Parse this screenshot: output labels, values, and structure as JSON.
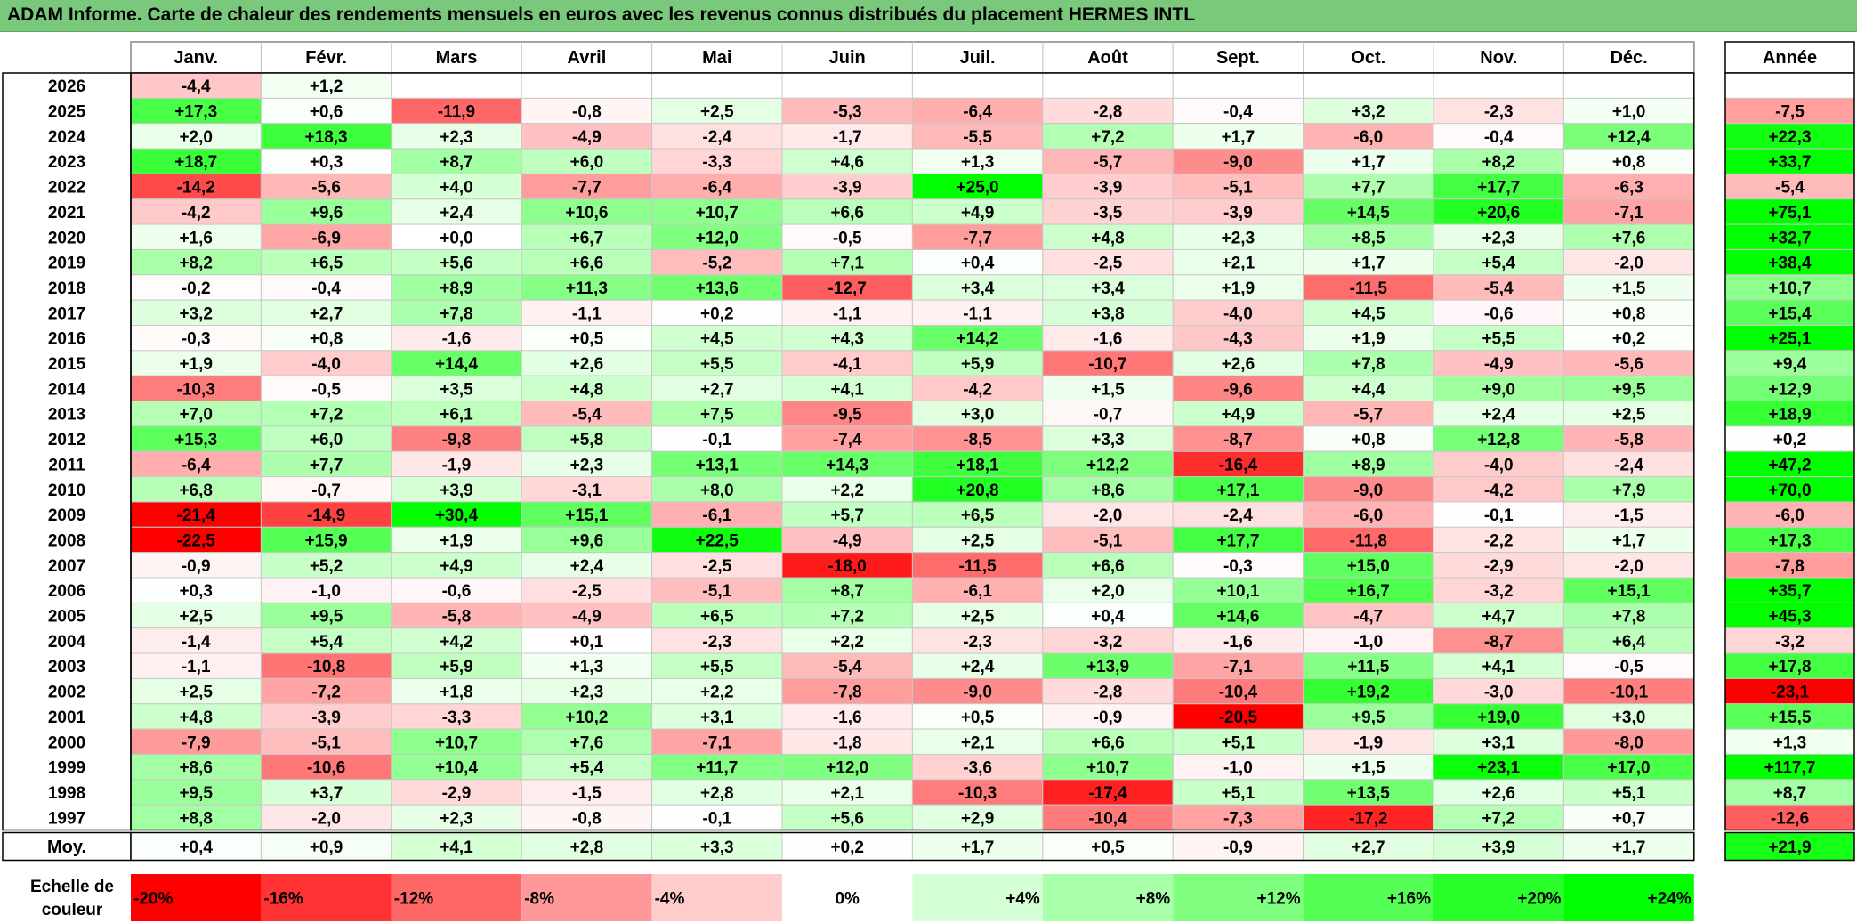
{
  "title": "ADAM Informe. Carte de chaleur des rendements mensuels en euros avec les revenus connus distribués du placement HERMES INTL",
  "chart_data": {
    "type": "heatmap",
    "title": "ADAM Informe. Carte de chaleur des rendements mensuels en euros avec les revenus connus distribués du placement HERMES INTL",
    "columns": [
      "Janv.",
      "Févr.",
      "Mars",
      "Avril",
      "Mai",
      "Juin",
      "Juil.",
      "Août",
      "Sept.",
      "Oct.",
      "Nov.",
      "Déc."
    ],
    "year_column_label": "Année",
    "rows": [
      {
        "label": "2026",
        "values": [
          "-4,4",
          "+1,2",
          "",
          "",
          "",
          "",
          "",
          "",
          "",
          "",
          "",
          ""
        ],
        "year": ""
      },
      {
        "label": "2025",
        "values": [
          "+17,3",
          "+0,6",
          "-11,9",
          "-0,8",
          "+2,5",
          "-5,3",
          "-6,4",
          "-2,8",
          "-0,4",
          "+3,2",
          "-2,3",
          "+1,0"
        ],
        "year": "-7,5"
      },
      {
        "label": "2024",
        "values": [
          "+2,0",
          "+18,3",
          "+2,3",
          "-4,9",
          "-2,4",
          "-1,7",
          "-5,5",
          "+7,2",
          "+1,7",
          "-6,0",
          "-0,4",
          "+12,4"
        ],
        "year": "+22,3"
      },
      {
        "label": "2023",
        "values": [
          "+18,7",
          "+0,3",
          "+8,7",
          "+6,0",
          "-3,3",
          "+4,6",
          "+1,3",
          "-5,7",
          "-9,0",
          "+1,7",
          "+8,2",
          "+0,8"
        ],
        "year": "+33,7"
      },
      {
        "label": "2022",
        "values": [
          "-14,2",
          "-5,6",
          "+4,0",
          "-7,7",
          "-6,4",
          "-3,9",
          "+25,0",
          "-3,9",
          "-5,1",
          "+7,7",
          "+17,7",
          "-6,3"
        ],
        "year": "-5,4"
      },
      {
        "label": "2021",
        "values": [
          "-4,2",
          "+9,6",
          "+2,4",
          "+10,6",
          "+10,7",
          "+6,6",
          "+4,9",
          "-3,5",
          "-3,9",
          "+14,5",
          "+20,6",
          "-7,1"
        ],
        "year": "+75,1"
      },
      {
        "label": "2020",
        "values": [
          "+1,6",
          "-6,9",
          "+0,0",
          "+6,7",
          "+12,0",
          "-0,5",
          "-7,7",
          "+4,8",
          "+2,3",
          "+8,5",
          "+2,3",
          "+7,6"
        ],
        "year": "+32,7"
      },
      {
        "label": "2019",
        "values": [
          "+8,2",
          "+6,5",
          "+5,6",
          "+6,6",
          "-5,2",
          "+7,1",
          "+0,4",
          "-2,5",
          "+2,1",
          "+1,7",
          "+5,4",
          "-2,0"
        ],
        "year": "+38,4"
      },
      {
        "label": "2018",
        "values": [
          "-0,2",
          "-0,4",
          "+8,9",
          "+11,3",
          "+13,6",
          "-12,7",
          "+3,4",
          "+3,4",
          "+1,9",
          "-11,5",
          "-5,4",
          "+1,5"
        ],
        "year": "+10,7"
      },
      {
        "label": "2017",
        "values": [
          "+3,2",
          "+2,7",
          "+7,8",
          "-1,1",
          "+0,2",
          "-1,1",
          "-1,1",
          "+3,8",
          "-4,0",
          "+4,5",
          "-0,6",
          "+0,8"
        ],
        "year": "+15,4"
      },
      {
        "label": "2016",
        "values": [
          "-0,3",
          "+0,8",
          "-1,6",
          "+0,5",
          "+4,5",
          "+4,3",
          "+14,2",
          "-1,6",
          "-4,3",
          "+1,9",
          "+5,5",
          "+0,2"
        ],
        "year": "+25,1"
      },
      {
        "label": "2015",
        "values": [
          "+1,9",
          "-4,0",
          "+14,4",
          "+2,6",
          "+5,5",
          "-4,1",
          "+5,9",
          "-10,7",
          "+2,6",
          "+7,8",
          "-4,9",
          "-5,6"
        ],
        "year": "+9,4"
      },
      {
        "label": "2014",
        "values": [
          "-10,3",
          "-0,5",
          "+3,5",
          "+4,8",
          "+2,7",
          "+4,1",
          "-4,2",
          "+1,5",
          "-9,6",
          "+4,4",
          "+9,0",
          "+9,5"
        ],
        "year": "+12,9"
      },
      {
        "label": "2013",
        "values": [
          "+7,0",
          "+7,2",
          "+6,1",
          "-5,4",
          "+7,5",
          "-9,5",
          "+3,0",
          "-0,7",
          "+4,9",
          "-5,7",
          "+2,4",
          "+2,5"
        ],
        "year": "+18,9"
      },
      {
        "label": "2012",
        "values": [
          "+15,3",
          "+6,0",
          "-9,8",
          "+5,8",
          "-0,1",
          "-7,4",
          "-8,5",
          "+3,3",
          "-8,7",
          "+0,8",
          "+12,8",
          "-5,8"
        ],
        "year": "+0,2"
      },
      {
        "label": "2011",
        "values": [
          "-6,4",
          "+7,7",
          "-1,9",
          "+2,3",
          "+13,1",
          "+14,3",
          "+18,1",
          "+12,2",
          "-16,4",
          "+8,9",
          "-4,0",
          "-2,4"
        ],
        "year": "+47,2"
      },
      {
        "label": "2010",
        "values": [
          "+6,8",
          "-0,7",
          "+3,9",
          "-3,1",
          "+8,0",
          "+2,2",
          "+20,8",
          "+8,6",
          "+17,1",
          "-9,0",
          "-4,2",
          "+7,9"
        ],
        "year": "+70,0"
      },
      {
        "label": "2009",
        "values": [
          "-21,4",
          "-14,9",
          "+30,4",
          "+15,1",
          "-6,1",
          "+5,7",
          "+6,5",
          "-2,0",
          "-2,4",
          "-6,0",
          "-0,1",
          "-1,5"
        ],
        "year": "-6,0"
      },
      {
        "label": "2008",
        "values": [
          "-22,5",
          "+15,9",
          "+1,9",
          "+9,6",
          "+22,5",
          "-4,9",
          "+2,5",
          "-5,1",
          "+17,7",
          "-11,8",
          "-2,2",
          "+1,7"
        ],
        "year": "+17,3"
      },
      {
        "label": "2007",
        "values": [
          "-0,9",
          "+5,2",
          "+4,9",
          "+2,4",
          "-2,5",
          "-18,0",
          "-11,5",
          "+6,6",
          "-0,3",
          "+15,0",
          "-2,9",
          "-2,0"
        ],
        "year": "-7,8"
      },
      {
        "label": "2006",
        "values": [
          "+0,3",
          "-1,0",
          "-0,6",
          "-2,5",
          "-5,1",
          "+8,7",
          "-6,1",
          "+2,0",
          "+10,1",
          "+16,7",
          "-3,2",
          "+15,1"
        ],
        "year": "+35,7"
      },
      {
        "label": "2005",
        "values": [
          "+2,5",
          "+9,5",
          "-5,8",
          "-4,9",
          "+6,5",
          "+7,2",
          "+2,5",
          "+0,4",
          "+14,6",
          "-4,7",
          "+4,7",
          "+7,8"
        ],
        "year": "+45,3"
      },
      {
        "label": "2004",
        "values": [
          "-1,4",
          "+5,4",
          "+4,2",
          "+0,1",
          "-2,3",
          "+2,2",
          "-2,3",
          "-3,2",
          "-1,6",
          "-1,0",
          "-8,7",
          "+6,4"
        ],
        "year": "-3,2"
      },
      {
        "label": "2003",
        "values": [
          "-1,1",
          "-10,8",
          "+5,9",
          "+1,3",
          "+5,5",
          "-5,4",
          "+2,4",
          "+13,9",
          "-7,1",
          "+11,5",
          "+4,1",
          "-0,5"
        ],
        "year": "+17,8"
      },
      {
        "label": "2002",
        "values": [
          "+2,5",
          "-7,2",
          "+1,8",
          "+2,3",
          "+2,2",
          "-7,8",
          "-9,0",
          "-2,8",
          "-10,4",
          "+19,2",
          "-3,0",
          "-10,1"
        ],
        "year": "-23,1"
      },
      {
        "label": "2001",
        "values": [
          "+4,8",
          "-3,9",
          "-3,3",
          "+10,2",
          "+3,1",
          "-1,6",
          "+0,5",
          "-0,9",
          "-20,5",
          "+9,5",
          "+19,0",
          "+3,0"
        ],
        "year": "+15,5"
      },
      {
        "label": "2000",
        "values": [
          "-7,9",
          "-5,1",
          "+10,7",
          "+7,6",
          "-7,1",
          "-1,8",
          "+2,1",
          "+6,6",
          "+5,1",
          "-1,9",
          "+3,1",
          "-8,0"
        ],
        "year": "+1,3"
      },
      {
        "label": "1999",
        "values": [
          "+8,6",
          "-10,6",
          "+10,4",
          "+5,4",
          "+11,7",
          "+12,0",
          "-3,6",
          "+10,7",
          "-1,0",
          "+1,5",
          "+23,1",
          "+17,0"
        ],
        "year": "+117,7"
      },
      {
        "label": "1998",
        "values": [
          "+9,5",
          "+3,7",
          "-2,9",
          "-1,5",
          "+2,8",
          "+2,1",
          "-10,3",
          "-17,4",
          "+5,1",
          "+13,5",
          "+2,6",
          "+5,1"
        ],
        "year": "+8,7"
      },
      {
        "label": "1997",
        "values": [
          "+8,8",
          "-2,0",
          "+2,3",
          "-0,8",
          "-0,1",
          "+5,6",
          "+2,9",
          "-10,4",
          "-7,3",
          "-17,2",
          "+7,2",
          "+0,7"
        ],
        "year": "-12,6"
      }
    ],
    "average_row": {
      "label": "Moy.",
      "values": [
        "+0,4",
        "+0,9",
        "+4,1",
        "+2,8",
        "+3,3",
        "+0,2",
        "+1,7",
        "+0,5",
        "-0,9",
        "+2,7",
        "+3,9",
        "+1,7"
      ],
      "year": "+21,9"
    },
    "scale": {
      "label_line1": "Echelle de",
      "label_line2": "couleur",
      "steps": [
        "-20%",
        "-16%",
        "-12%",
        "-8%",
        "-4%",
        "0%",
        "+4%",
        "+8%",
        "+12%",
        "+16%",
        "+20%",
        "+24%"
      ],
      "step_values": [
        -20,
        -16,
        -12,
        -8,
        -4,
        0,
        4,
        8,
        12,
        16,
        20,
        24
      ]
    },
    "colors": {
      "negative_max": "#ff0000",
      "neutral": "#ffffff",
      "positive_max": "#00ff00",
      "title_bar": "#79c87b"
    }
  }
}
